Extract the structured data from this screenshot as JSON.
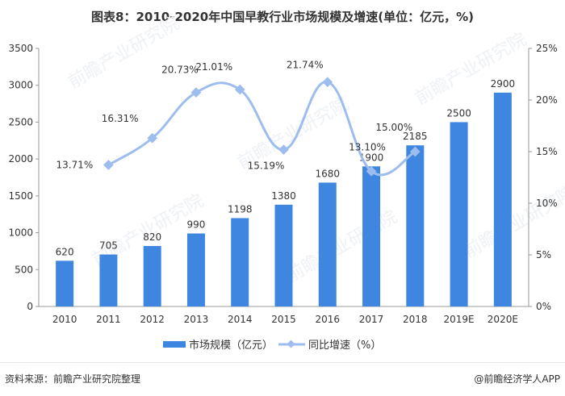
{
  "chart_data": {
    "type": "bar+line",
    "title": "图表8：2010-2020年中国早教行业市场规模及增速(单位：亿元，%)",
    "categories": [
      "2010",
      "2011",
      "2012",
      "2013",
      "2014",
      "2015",
      "2016",
      "2017",
      "2018",
      "2019E",
      "2020E"
    ],
    "series": [
      {
        "name": "市场规模（亿元）",
        "type": "bar",
        "axis": "left",
        "color": "#3f86e0",
        "values": [
          620,
          705,
          820,
          990,
          1198,
          1380,
          1680,
          1900,
          2185,
          2500,
          2900
        ]
      },
      {
        "name": "同比增速（%）",
        "type": "line",
        "axis": "right",
        "color": "#9dbdee",
        "values": [
          null,
          13.71,
          16.31,
          20.73,
          21.01,
          15.19,
          21.74,
          13.1,
          15.0,
          null,
          null
        ],
        "labels": [
          "",
          "13.71%",
          "16.31%",
          "20.73%",
          "21.01%",
          "15.19%",
          "21.74%",
          "13.10%",
          "15.00%",
          "",
          ""
        ]
      }
    ],
    "yleft": {
      "ylim": [
        0,
        3500
      ],
      "ticks": [
        "0",
        "500",
        "1000",
        "1500",
        "2000",
        "2500",
        "3000",
        "3500"
      ]
    },
    "yright": {
      "ylim": [
        0,
        25
      ],
      "ticks": [
        "0%",
        "5%",
        "10%",
        "15%",
        "20%",
        "25%"
      ]
    },
    "grid": false,
    "legend": "bottom"
  },
  "footer": {
    "source": "资料来源：前瞻产业研究院整理",
    "credit": "@前瞻经济学人APP"
  },
  "watermark": "前瞻产业研究院"
}
